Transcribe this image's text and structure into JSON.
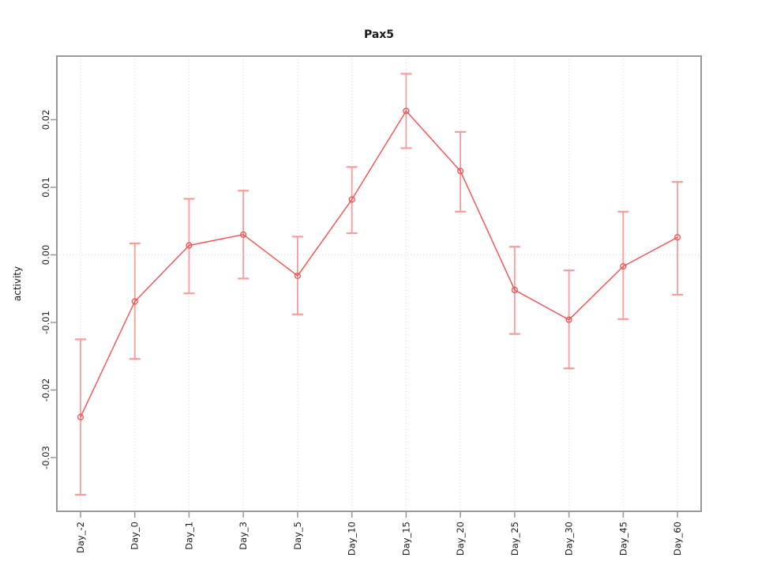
{
  "chart_data": {
    "type": "line",
    "title": "Pax5",
    "xlabel": "",
    "ylabel": "activity",
    "categories": [
      "Day_-2",
      "Day_0",
      "Day_1",
      "Day_3",
      "Day_5",
      "Day_10",
      "Day_15",
      "Day_20",
      "Day_25",
      "Day_30",
      "Day_45",
      "Day_60"
    ],
    "series": [
      {
        "name": "Pax5 activity",
        "values": [
          -0.024,
          -0.0069,
          0.0014,
          0.003,
          -0.0031,
          0.0082,
          0.0213,
          0.0124,
          -0.0052,
          -0.0096,
          -0.0017,
          0.0026
        ],
        "upper": [
          -0.0125,
          0.0017,
          0.0083,
          0.0095,
          0.0027,
          0.013,
          0.0268,
          0.0182,
          0.0012,
          -0.0023,
          0.0064,
          0.0108
        ],
        "lower": [
          -0.0355,
          -0.0154,
          -0.0057,
          -0.0035,
          -0.0088,
          0.0032,
          0.0158,
          0.0064,
          -0.0117,
          -0.0168,
          -0.0095,
          -0.0059
        ]
      }
    ],
    "yticks": [
      0.02,
      0.01,
      0.0,
      -0.01,
      -0.02,
      -0.03
    ],
    "ytick_labels": [
      "0.02",
      "0.01",
      "0.00",
      "-0.01",
      "-0.02",
      "-0.03"
    ],
    "ylim": [
      -0.038,
      0.0295
    ],
    "grid": "dotted vertical line at every category; dotted horizontal line at y=0 only",
    "legend": "none",
    "colors": {
      "line": "#f05050",
      "point": "#f05050",
      "error_bar": "#f79c9c",
      "grid": "#d8d8d8",
      "box": "#999999",
      "tick": "#999999",
      "text": "#1a1a1a"
    }
  }
}
